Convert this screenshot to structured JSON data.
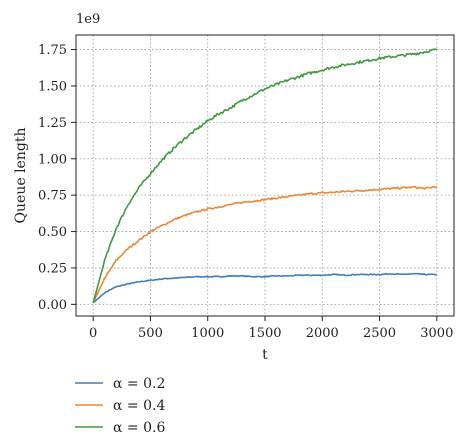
{
  "chart_data": {
    "type": "line",
    "title": "",
    "xlabel": "t",
    "ylabel": "Queue length",
    "y_scale_label": "1e9",
    "xlim": [
      -150,
      3150
    ],
    "ylim": [
      -0.08,
      1.85
    ],
    "xticks": [
      0,
      500,
      1000,
      1500,
      2000,
      2500,
      3000
    ],
    "xtick_labels": [
      "0",
      "500",
      "1000",
      "1500",
      "2000",
      "2500",
      "3000"
    ],
    "yticks": [
      0,
      0.25,
      0.5,
      0.75,
      1.0,
      1.25,
      1.5,
      1.75
    ],
    "ytick_labels": [
      "0.00",
      "0.25",
      "0.50",
      "0.75",
      "1.00",
      "1.25",
      "1.50",
      "1.75"
    ],
    "grid": true,
    "legend_position": "bottom-left-outside",
    "x": [
      0,
      100,
      200,
      300,
      400,
      500,
      600,
      700,
      800,
      900,
      1000,
      1100,
      1200,
      1300,
      1400,
      1500,
      1600,
      1700,
      1800,
      1900,
      2000,
      2100,
      2200,
      2300,
      2400,
      2500,
      2600,
      2700,
      2800,
      2900,
      3000
    ],
    "series": [
      {
        "name": "α = 0.2",
        "color": "#3f7fb5",
        "values": [
          0.01,
          0.08,
          0.12,
          0.14,
          0.155,
          0.165,
          0.175,
          0.18,
          0.185,
          0.19,
          0.19,
          0.19,
          0.195,
          0.195,
          0.19,
          0.19,
          0.195,
          0.195,
          0.2,
          0.2,
          0.2,
          0.205,
          0.2,
          0.205,
          0.205,
          0.205,
          0.21,
          0.205,
          0.21,
          0.205,
          0.205
        ]
      },
      {
        "name": "α = 0.4",
        "color": "#e8883a",
        "values": [
          0.01,
          0.18,
          0.3,
          0.38,
          0.44,
          0.5,
          0.54,
          0.58,
          0.61,
          0.635,
          0.655,
          0.67,
          0.685,
          0.7,
          0.71,
          0.72,
          0.73,
          0.74,
          0.75,
          0.76,
          0.765,
          0.77,
          0.775,
          0.78,
          0.785,
          0.79,
          0.795,
          0.8,
          0.805,
          0.795,
          0.81
        ]
      },
      {
        "name": "α = 0.6",
        "color": "#3f9a3f",
        "values": [
          0.01,
          0.3,
          0.52,
          0.68,
          0.8,
          0.9,
          0.99,
          1.07,
          1.14,
          1.2,
          1.26,
          1.31,
          1.35,
          1.4,
          1.44,
          1.48,
          1.51,
          1.54,
          1.565,
          1.59,
          1.61,
          1.63,
          1.645,
          1.66,
          1.675,
          1.69,
          1.7,
          1.71,
          1.72,
          1.735,
          1.75
        ]
      }
    ]
  }
}
